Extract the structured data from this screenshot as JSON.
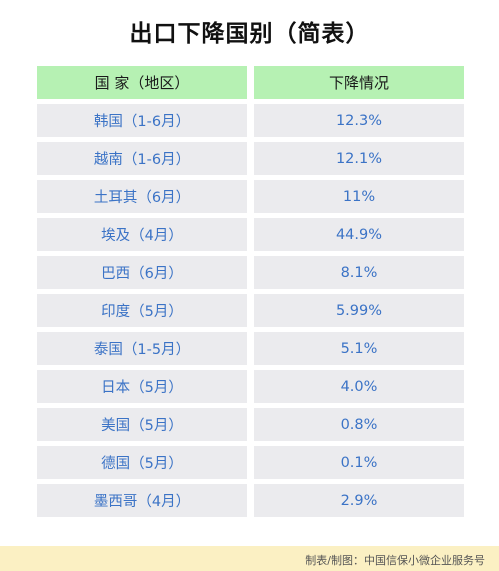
{
  "title": "出口下降国别（简表）",
  "table": {
    "headers": [
      "国 家（地区）",
      "下降情况"
    ],
    "rows": [
      {
        "country": "韩国（1-6月）",
        "decline": "12.3%"
      },
      {
        "country": "越南（1-6月）",
        "decline": "12.1%"
      },
      {
        "country": "土耳其（6月）",
        "decline": "11%"
      },
      {
        "country": "埃及（4月）",
        "decline": "44.9%"
      },
      {
        "country": "巴西（6月）",
        "decline": "8.1%"
      },
      {
        "country": "印度（5月）",
        "decline": "5.99%"
      },
      {
        "country": "泰国（1-5月）",
        "decline": "5.1%"
      },
      {
        "country": "日本（5月）",
        "decline": "4.0%"
      },
      {
        "country": "美国（5月）",
        "decline": "0.8%"
      },
      {
        "country": "德国（5月）",
        "decline": "0.1%"
      },
      {
        "country": "墨西哥（4月）",
        "decline": "2.9%"
      }
    ]
  },
  "footer": "制表/制图：中国信保小微企业服务号"
}
